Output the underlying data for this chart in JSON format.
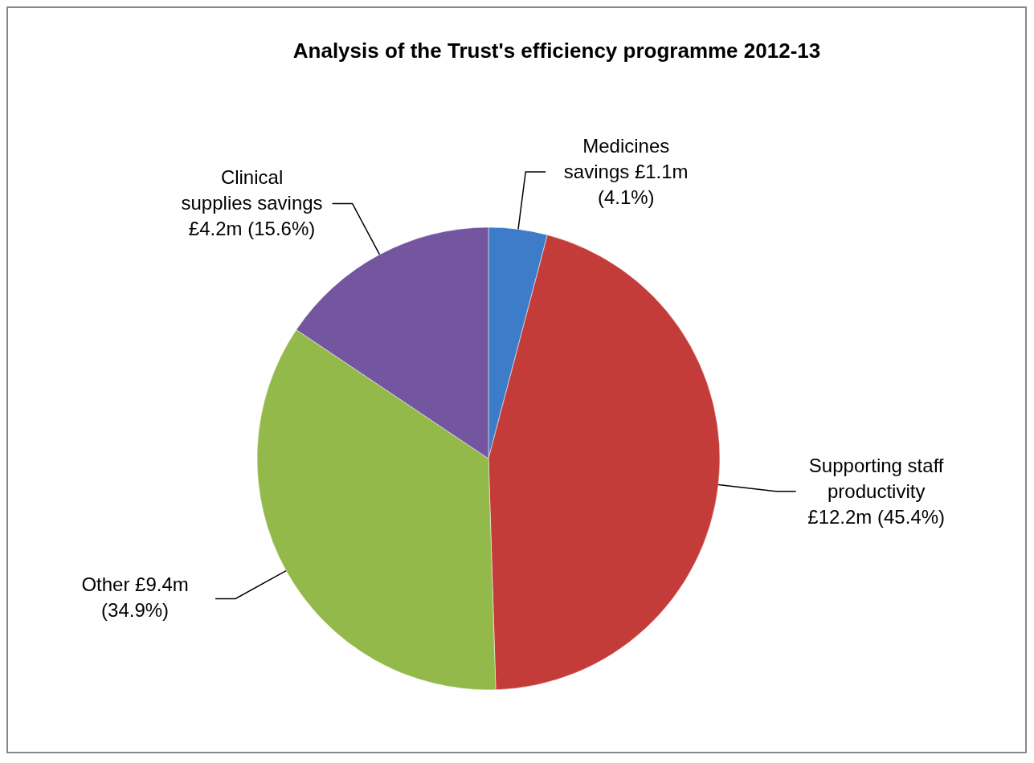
{
  "chart_data": {
    "type": "pie",
    "title": "Analysis of the Trust's efficiency programme 2012-13",
    "categories": [
      "Medicines savings £1.1m",
      "Supporting staff productivity £12.2m",
      "Other £9.4m",
      "Clinical supplies savings £4.2m"
    ],
    "values": [
      4.1,
      45.4,
      34.9,
      15.6
    ],
    "value_labels": [
      "(4.1%)",
      "(45.4%)",
      "(34.9%)",
      "(15.6%)"
    ],
    "colors": [
      "#3d7cc9",
      "#c43c39",
      "#92b94a",
      "#7456a0"
    ]
  }
}
